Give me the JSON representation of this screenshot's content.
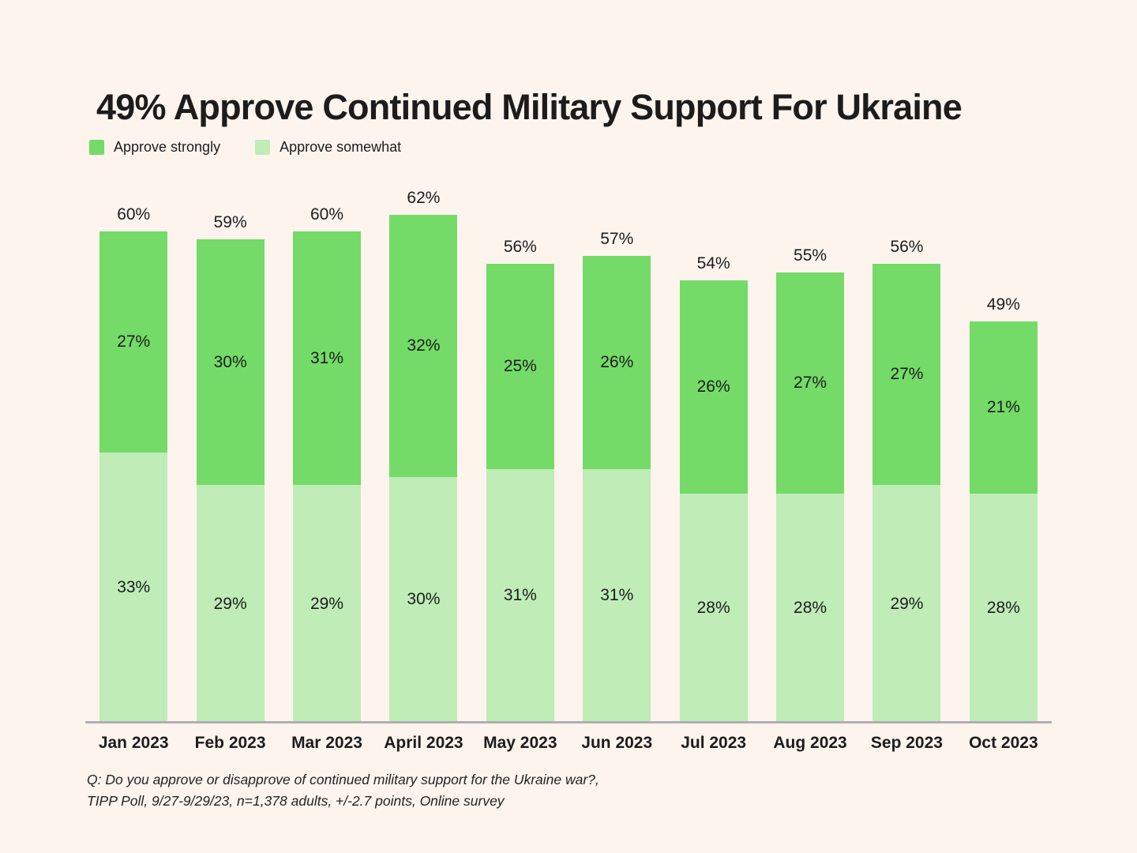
{
  "page": {
    "background": "#FDF4ED",
    "axis_line_color": "#B1AEB5",
    "text_color": "#1C1C1C"
  },
  "title": "49% Approve Continued Military Support For Ukraine",
  "legend": [
    {
      "label": "Approve strongly",
      "color": "#74DB68"
    },
    {
      "label": "Approve somewhat",
      "color": "#BFECB7"
    }
  ],
  "chart_data": {
    "type": "bar",
    "stacked": true,
    "title": "49% Approve Continued Military Support For Ukraine",
    "categories": [
      "Jan 2023",
      "Feb 2023",
      "Mar 2023",
      "April 2023",
      "May 2023",
      "Jun 2023",
      "Jul 2023",
      "Aug 2023",
      "Sep 2023",
      "Oct 2023"
    ],
    "series": [
      {
        "name": "Approve strongly",
        "color": "#74DB68",
        "values": [
          27,
          30,
          31,
          32,
          25,
          26,
          26,
          27,
          27,
          21
        ]
      },
      {
        "name": "Approve somewhat",
        "color": "#BFECB7",
        "values": [
          33,
          29,
          29,
          30,
          31,
          31,
          28,
          28,
          29,
          28
        ]
      }
    ],
    "totals": [
      60,
      59,
      60,
      62,
      56,
      57,
      54,
      55,
      56,
      49
    ],
    "value_suffix": "%",
    "xlabel": "",
    "ylabel": "",
    "ylim": [
      0,
      67
    ],
    "grid": false,
    "legend_position": "top-left"
  },
  "footnote": {
    "line1": "Q: Do you approve or disapprove of continued military support for the Ukraine war?,",
    "line2": "TIPP Poll, 9/27-9/29/23, n=1,378 adults, +/-2.7 points, Online survey"
  }
}
